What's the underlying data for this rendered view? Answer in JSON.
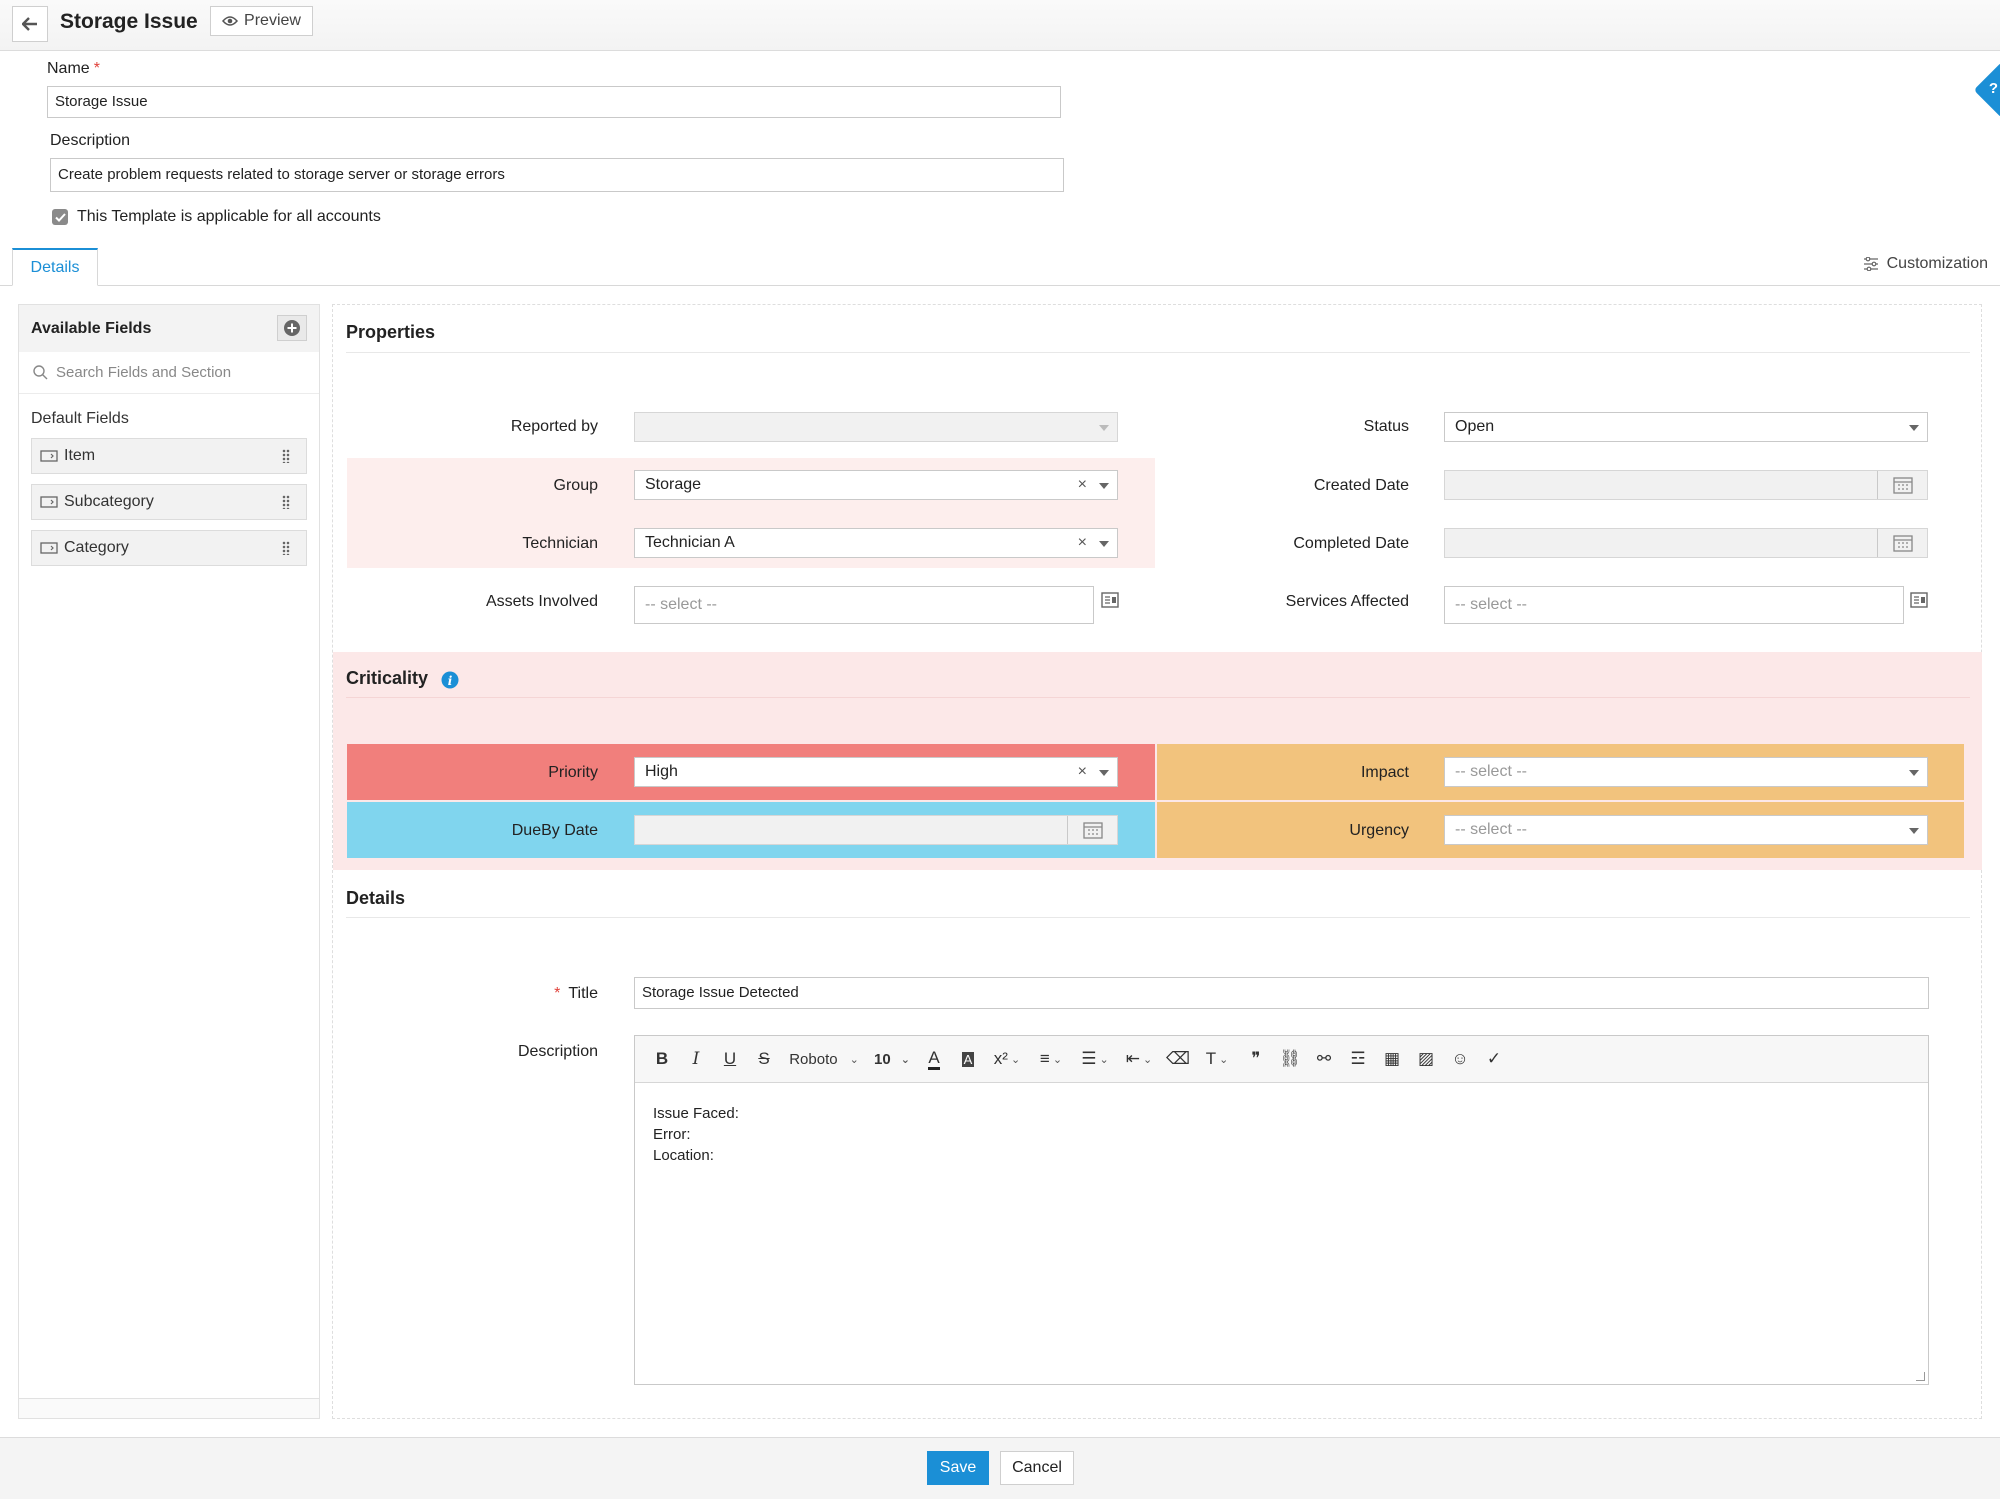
{
  "header": {
    "title": "Storage Issue",
    "preview_label": "Preview"
  },
  "template_form": {
    "name_label": "Name",
    "name_required_mark": "*",
    "name_value": "Storage Issue",
    "description_label": "Description",
    "description_value": "Create problem requests related to storage server or storage errors",
    "all_accounts_label": "This Template is applicable for all accounts",
    "all_accounts_checked": true
  },
  "tabs": {
    "details_label": "Details",
    "customization_label": "Customization"
  },
  "sidebar": {
    "title": "Available Fields",
    "search_placeholder": "Search Fields and Section",
    "default_fields_label": "Default Fields",
    "items": [
      {
        "label": "Item"
      },
      {
        "label": "Subcategory"
      },
      {
        "label": "Category"
      }
    ]
  },
  "properties": {
    "title": "Properties",
    "reported_by_label": "Reported by",
    "reported_by_value": "",
    "group_label": "Group",
    "group_value": "Storage",
    "technician_label": "Technician",
    "technician_value": "Technician A",
    "assets_label": "Assets Involved",
    "assets_placeholder": "-- select --",
    "status_label": "Status",
    "status_value": "Open",
    "created_date_label": "Created Date",
    "completed_date_label": "Completed Date",
    "services_label": "Services Affected",
    "services_placeholder": "-- select --",
    "highlight_color": "#fdecea"
  },
  "criticality": {
    "title": "Criticality",
    "priority_label": "Priority",
    "priority_value": "High",
    "priority_color": "#f17f7c",
    "dueby_label": "DueBy Date",
    "dueby_color": "#80d5ee",
    "impact_label": "Impact",
    "impact_placeholder": "-- select --",
    "urgency_label": "Urgency",
    "urgency_placeholder": "-- select --",
    "impact_color": "#f2c37d",
    "section_bg": "#fce8e8"
  },
  "details": {
    "title": "Details",
    "title_field_label": "Title",
    "title_required_mark": "*",
    "title_value": "Storage Issue Detected",
    "description_label": "Description",
    "editor_font": "Roboto",
    "editor_size": "10",
    "body_lines": [
      "Issue Faced:",
      "Error:",
      "Location:"
    ]
  },
  "footer": {
    "save_label": "Save",
    "cancel_label": "Cancel"
  },
  "colors": {
    "accent": "#1b8fd6",
    "required": "#e0413a"
  }
}
